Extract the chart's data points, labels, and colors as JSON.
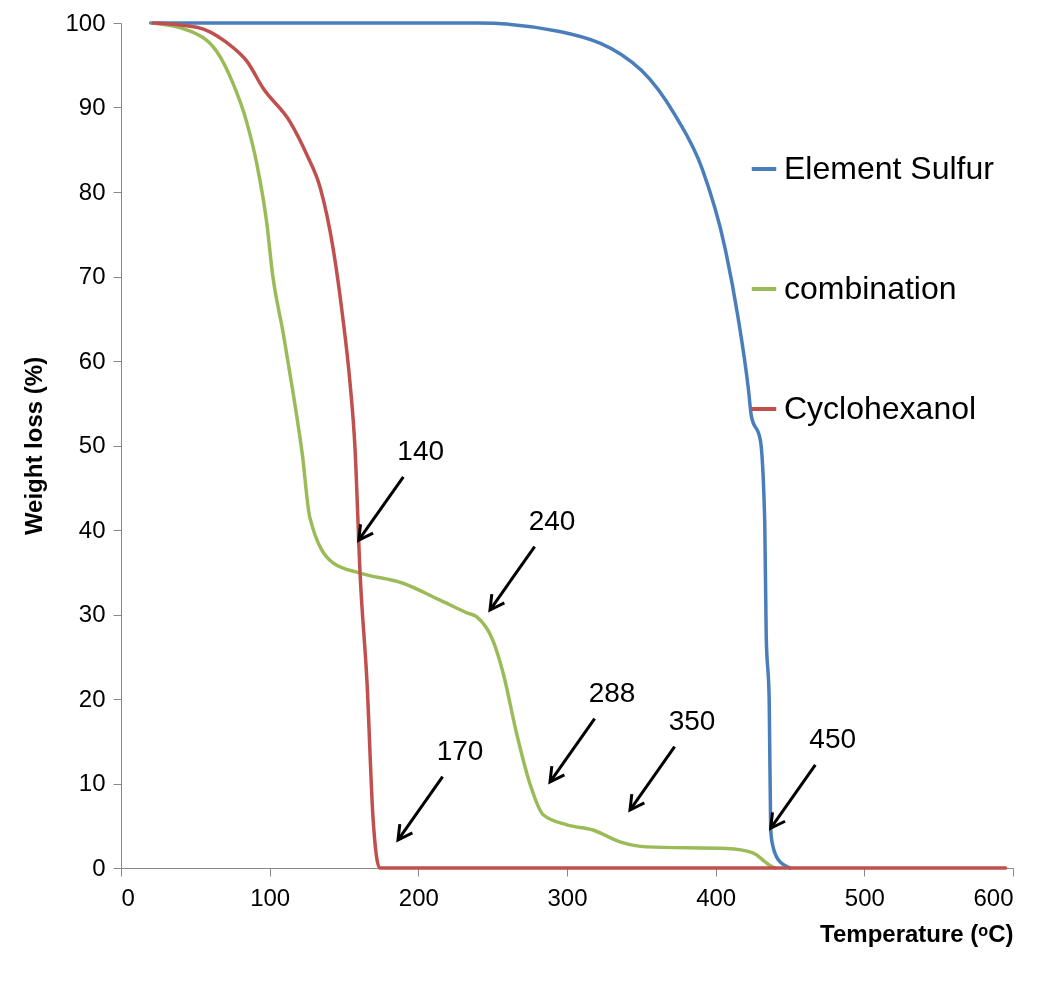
{
  "chart_data": {
    "type": "line",
    "xlabel": "Temperature (ᵒC)",
    "ylabel": "Weight loss (%)",
    "xlim": [
      0,
      600
    ],
    "xticks": [
      0,
      100,
      200,
      300,
      400,
      500,
      600
    ],
    "ylim": [
      0,
      100
    ],
    "yticks": [
      0,
      10,
      20,
      30,
      40,
      50,
      60,
      70,
      80,
      90,
      100
    ],
    "grid": false,
    "legend": "top right",
    "marker": "none",
    "line_style": "solid",
    "series": [
      {
        "name": "Element Sulfur",
        "color": "#4a7ebb",
        "x": [
          20,
          240,
          295,
          350,
          373,
          391,
          406,
          415,
          422,
          424,
          430,
          433,
          434,
          436,
          437,
          438,
          442,
          450
        ],
        "values": [
          100,
          100,
          99,
          94.4,
          89,
          82.7,
          73.6,
          65.2,
          56.7,
          53.5,
          50.7,
          41,
          27.5,
          20,
          4.7,
          3,
          1,
          0
        ]
      },
      {
        "name": "combination",
        "color": "#9bbb59",
        "x": [
          21,
          44,
          64.5,
          75,
          84.5,
          91.5,
          98,
          102,
          109,
          115.7,
          122,
          127,
          142.6,
          160.8,
          189.7,
          214.6,
          232.7,
          239.5,
          250,
          257,
          266,
          275,
          284,
          300,
          317.5,
          335.6,
          353.8,
          407.6,
          425,
          436.5,
          440
        ],
        "values": [
          100,
          99.2,
          96.6,
          93,
          88.3,
          83.2,
          76.4,
          70.2,
          63.4,
          56.3,
          48.9,
          41.5,
          36.1,
          34.9,
          33.7,
          31.7,
          30.2,
          29.7,
          27,
          23.1,
          16,
          10,
          6.3,
          5.1,
          4.5,
          3.1,
          2.5,
          2.3,
          1.8,
          0.3,
          0
        ]
      },
      {
        "name": "Cyclohexanol",
        "color": "#c0504d",
        "x": [
          21.5,
          51,
          71,
          85,
          95.5,
          113.7,
          125,
          134,
          142.6,
          149,
          154,
          157.4,
          160.8,
          165.5,
          169.5,
          174,
          595
        ],
        "values": [
          100,
          99.5,
          97.7,
          95.4,
          92.3,
          88.3,
          84.4,
          80.5,
          73.4,
          65.4,
          57.5,
          49.7,
          34.9,
          21.9,
          6,
          0,
          0
        ]
      }
    ],
    "annotations": [
      {
        "text": "140",
        "x": 159.9,
        "y": 38.8
      },
      "240",
      "170",
      "288",
      "350",
      {
        "text": "450",
        "x": 437,
        "y": 4.7
      }
    ]
  }
}
